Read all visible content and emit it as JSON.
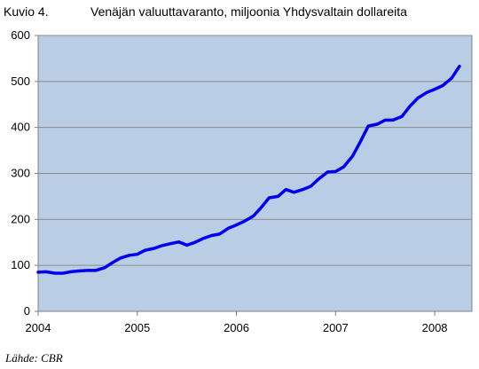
{
  "header": {
    "figure_number": "Kuvio 4.",
    "title": "Venäjän valuuttavaranto, miljoonia Yhdysvaltain dollareita"
  },
  "source": "Lähde: CBR",
  "chart_data": {
    "type": "line",
    "title": "Venäjän valuuttavaranto, miljoonia Yhdysvaltain dollareita",
    "xlabel": "",
    "ylabel": "",
    "xlim": [
      2004,
      2008.375
    ],
    "ylim": [
      0,
      600
    ],
    "x_ticks": [
      2004,
      2005,
      2006,
      2007,
      2008
    ],
    "y_ticks": [
      0,
      100,
      200,
      300,
      400,
      500,
      600
    ],
    "grid": "horizontal",
    "legend": "none",
    "plot_background": "#b9cde5",
    "line_color": "#0000ee",
    "series": [
      {
        "values": [
          [
            2004.0,
            85
          ],
          [
            2004.08,
            86
          ],
          [
            2004.17,
            83
          ],
          [
            2004.25,
            83
          ],
          [
            2004.33,
            86
          ],
          [
            2004.42,
            88
          ],
          [
            2004.5,
            89
          ],
          [
            2004.58,
            89
          ],
          [
            2004.67,
            95
          ],
          [
            2004.75,
            106
          ],
          [
            2004.83,
            116
          ],
          [
            2004.92,
            122
          ],
          [
            2005.0,
            124
          ],
          [
            2005.08,
            133
          ],
          [
            2005.17,
            137
          ],
          [
            2005.25,
            143
          ],
          [
            2005.33,
            147
          ],
          [
            2005.42,
            151
          ],
          [
            2005.5,
            144
          ],
          [
            2005.58,
            150
          ],
          [
            2005.67,
            159
          ],
          [
            2005.75,
            165
          ],
          [
            2005.83,
            168
          ],
          [
            2005.92,
            181
          ],
          [
            2006.0,
            188
          ],
          [
            2006.08,
            196
          ],
          [
            2006.17,
            207
          ],
          [
            2006.25,
            226
          ],
          [
            2006.33,
            247
          ],
          [
            2006.42,
            250
          ],
          [
            2006.5,
            265
          ],
          [
            2006.58,
            259
          ],
          [
            2006.67,
            265
          ],
          [
            2006.75,
            272
          ],
          [
            2006.83,
            288
          ],
          [
            2006.92,
            303
          ],
          [
            2007.0,
            304
          ],
          [
            2007.08,
            314
          ],
          [
            2007.17,
            337
          ],
          [
            2007.25,
            369
          ],
          [
            2007.33,
            403
          ],
          [
            2007.42,
            407
          ],
          [
            2007.5,
            416
          ],
          [
            2007.58,
            416
          ],
          [
            2007.67,
            424
          ],
          [
            2007.75,
            446
          ],
          [
            2007.83,
            464
          ],
          [
            2007.92,
            476
          ],
          [
            2008.0,
            483
          ],
          [
            2008.08,
            491
          ],
          [
            2008.17,
            507
          ],
          [
            2008.25,
            533
          ]
        ]
      }
    ]
  }
}
